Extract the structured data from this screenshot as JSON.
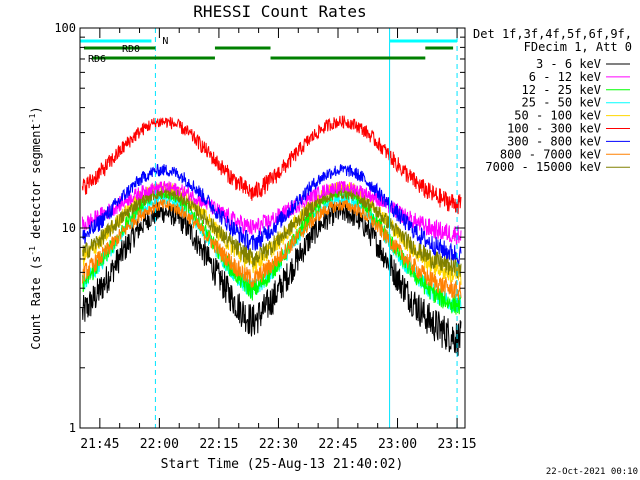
{
  "chart_data": {
    "type": "line",
    "title": "RHESSI Count Rates",
    "xlabel": "Start Time (25-Aug-13 21:40:02)",
    "ylabel_main": "Count Rate (s",
    "ylabel_sup": "-1",
    "ylabel_tail": " detector segment",
    "ylabel_sup2": "-1",
    "ylabel_close": ")",
    "y_scale": "log",
    "ylim": [
      1,
      100
    ],
    "y_ticks": [
      {
        "v": 1,
        "label": "1"
      },
      {
        "v": 10,
        "label": "10"
      },
      {
        "v": 100,
        "label": "100"
      }
    ],
    "xlim": [
      "21:40",
      "23:17"
    ],
    "x_ticks": [
      "21:45",
      "22:00",
      "22:15",
      "22:30",
      "22:45",
      "23:00",
      "23:15"
    ],
    "legend_header": [
      "Det 1f,3f,4f,5f,6f,9f,",
      "FDecim 1, Att 0"
    ],
    "legend_placement": "right",
    "series": [
      {
        "name": "3 - 6 keV",
        "color": "#000000",
        "base": 2.6,
        "peak": 12.0
      },
      {
        "name": "6 - 12 keV",
        "color": "#ff00ff",
        "base": 9.0,
        "peak": 16.0
      },
      {
        "name": "12 - 25 keV",
        "color": "#00ff00",
        "base": 3.8,
        "peak": 15.0
      },
      {
        "name": "25 - 50 keV",
        "color": "#00ffff",
        "base": 3.9,
        "peak": 14.0
      },
      {
        "name": "50 - 100 keV",
        "color": "#ffd700",
        "base": 5.5,
        "peak": 16.0
      },
      {
        "name": "100 - 300 keV",
        "color": "#ff0000",
        "base": 12.5,
        "peak": 34.0
      },
      {
        "name": "300 - 800 keV",
        "color": "#0000ff",
        "base": 7.0,
        "peak": 19.5
      },
      {
        "name": "800 - 7000 keV",
        "color": "#ff8000",
        "base": 4.6,
        "peak": 13.0
      },
      {
        "name": "7000 - 15000 keV",
        "color": "#808000",
        "base": 6.0,
        "peak": 15.0
      }
    ],
    "peaks": [
      "22:01",
      "22:46"
    ],
    "troughs": [
      "21:42",
      "22:23",
      "23:10"
    ],
    "flag_bars": [
      {
        "label": "RD0",
        "color": "#008000",
        "segments": [
          [
            "21:41",
            "21:59"
          ],
          [
            "22:14",
            "22:28"
          ],
          [
            "23:07",
            "23:14"
          ]
        ]
      },
      {
        "label": "RD6",
        "color": "#008000",
        "segments": [
          [
            "21:43",
            "22:14"
          ],
          [
            "22:28",
            "23:07"
          ]
        ]
      },
      {
        "label": "N",
        "color": "#00ffff",
        "segments": [
          [
            "21:40",
            "21:58"
          ],
          [
            "22:58",
            "23:15"
          ]
        ]
      }
    ],
    "vlines_solid": [
      "21:40",
      "22:58"
    ],
    "vlines_dashed": [
      "21:59",
      "23:15"
    ]
  },
  "footer": {
    "timestamp": "22-Oct-2021 00:10"
  }
}
